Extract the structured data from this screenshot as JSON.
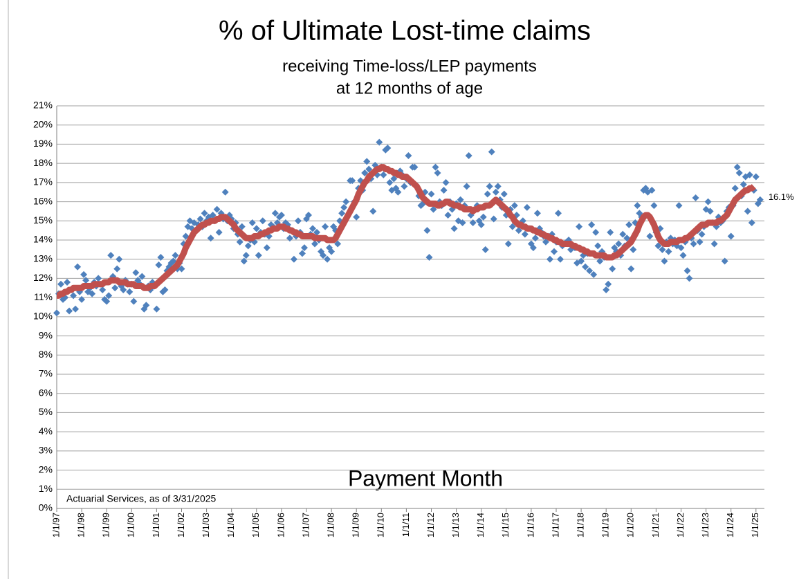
{
  "chart_data": {
    "type": "scatter",
    "title": "% of Ultimate Lost-time claims",
    "subtitle": [
      "receiving Time-loss/LEP payments",
      "at 12 months of age"
    ],
    "x_label": "Payment Month",
    "note": "Actuarial Services, as of 3/31/2025",
    "annotation": "16.1%",
    "grid": true,
    "ylim": [
      0,
      21
    ],
    "yticks": [
      {
        "value": 0,
        "label": "0%"
      },
      {
        "value": 1,
        "label": "1%"
      },
      {
        "value": 2,
        "label": "2%"
      },
      {
        "value": 3,
        "label": "3%"
      },
      {
        "value": 4,
        "label": "4%"
      },
      {
        "value": 5,
        "label": "5%"
      },
      {
        "value": 6,
        "label": "6%"
      },
      {
        "value": 7,
        "label": "7%"
      },
      {
        "value": 8,
        "label": "8%"
      },
      {
        "value": 9,
        "label": "9%"
      },
      {
        "value": 10,
        "label": "10%"
      },
      {
        "value": 11,
        "label": "11%"
      },
      {
        "value": 12,
        "label": "12%"
      },
      {
        "value": 13,
        "label": "13%"
      },
      {
        "value": 14,
        "label": "14%"
      },
      {
        "value": 15,
        "label": "15%"
      },
      {
        "value": 16,
        "label": "16%"
      },
      {
        "value": 17,
        "label": "17%"
      },
      {
        "value": 18,
        "label": "18%"
      },
      {
        "value": 19,
        "label": "19%"
      },
      {
        "value": 20,
        "label": "20%"
      },
      {
        "value": 21,
        "label": "21%"
      }
    ],
    "categories": [
      "1/1/97",
      null,
      null,
      null,
      null,
      null,
      null,
      null,
      null,
      null,
      null,
      null,
      "1/1/98",
      null,
      null,
      null,
      null,
      null,
      null,
      null,
      null,
      null,
      null,
      null,
      "1/1/99",
      null,
      null,
      null,
      null,
      null,
      null,
      null,
      null,
      null,
      null,
      null,
      "1/1/00",
      null,
      null,
      null,
      null,
      null,
      null,
      null,
      null,
      null,
      null,
      null,
      "1/1/01",
      null,
      null,
      null,
      null,
      null,
      null,
      null,
      null,
      null,
      null,
      null,
      "1/1/02",
      null,
      null,
      null,
      null,
      null,
      null,
      null,
      null,
      null,
      null,
      null,
      "1/1/03",
      null,
      null,
      null,
      null,
      null,
      null,
      null,
      null,
      null,
      null,
      null,
      "1/1/04",
      null,
      null,
      null,
      null,
      null,
      null,
      null,
      null,
      null,
      null,
      null,
      "1/1/05",
      null,
      null,
      null,
      null,
      null,
      null,
      null,
      null,
      null,
      null,
      null,
      "1/1/06",
      null,
      null,
      null,
      null,
      null,
      null,
      null,
      null,
      null,
      null,
      null,
      "1/1/07",
      null,
      null,
      null,
      null,
      null,
      null,
      null,
      null,
      null,
      null,
      null,
      "1/1/08",
      null,
      null,
      null,
      null,
      null,
      null,
      null,
      null,
      null,
      null,
      null,
      "1/1/09",
      null,
      null,
      null,
      null,
      null,
      null,
      null,
      null,
      null,
      null,
      null,
      "1/1/10",
      null,
      null,
      null,
      null,
      null,
      null,
      null,
      null,
      null,
      null,
      null,
      "1/1/11",
      null,
      null,
      null,
      null,
      null,
      null,
      null,
      null,
      null,
      null,
      null,
      "1/1/12",
      null,
      null,
      null,
      null,
      null,
      null,
      null,
      null,
      null,
      null,
      null,
      "1/1/13",
      null,
      null,
      null,
      null,
      null,
      null,
      null,
      null,
      null,
      null,
      null,
      "1/1/14",
      null,
      null,
      null,
      null,
      null,
      null,
      null,
      null,
      null,
      null,
      null,
      "1/1/15",
      null,
      null,
      null,
      null,
      null,
      null,
      null,
      null,
      null,
      null,
      null,
      "1/1/16",
      null,
      null,
      null,
      null,
      null,
      null,
      null,
      null,
      null,
      null,
      null,
      "1/1/17",
      null,
      null,
      null,
      null,
      null,
      null,
      null,
      null,
      null,
      null,
      null,
      "1/1/18",
      null,
      null,
      null,
      null,
      null,
      null,
      null,
      null,
      null,
      null,
      null,
      "1/1/19",
      null,
      null,
      null,
      null,
      null,
      null,
      null,
      null,
      null,
      null,
      null,
      "1/1/20",
      null,
      null,
      null,
      null,
      null,
      null,
      null,
      null,
      null,
      null,
      null,
      "1/1/21",
      null,
      null,
      null,
      null,
      null,
      null,
      null,
      null,
      null,
      null,
      null,
      "1/1/22",
      null,
      null,
      null,
      null,
      null,
      null,
      null,
      null,
      null,
      null,
      null,
      "1/1/23",
      null,
      null,
      null,
      null,
      null,
      null,
      null,
      null,
      null,
      null,
      null,
      "1/1/24",
      null,
      null,
      null,
      null,
      null,
      null,
      null,
      null,
      null,
      null,
      null,
      "1/1/25",
      null,
      null
    ],
    "series": [
      {
        "color": "#4f81bd",
        "marker": "diamond",
        "values": [
          10.2,
          11.2,
          11.7,
          10.9,
          11.0,
          11.8,
          10.3,
          11.4,
          11.1,
          10.4,
          12.6,
          11.3,
          10.9,
          12.2,
          11.9,
          11.3,
          11.5,
          11.2,
          11.8,
          11.6,
          12.0,
          11.7,
          11.4,
          10.9,
          10.8,
          11.1,
          13.2,
          12.1,
          11.5,
          12.5,
          13.0,
          11.6,
          11.4,
          11.9,
          11.7,
          11.3,
          11.7,
          10.8,
          12.3,
          11.9,
          11.7,
          12.1,
          10.4,
          10.6,
          11.6,
          11.4,
          11.8,
          11.6,
          10.4,
          12.7,
          13.1,
          11.3,
          11.4,
          12.4,
          12.6,
          12.8,
          12.9,
          13.2,
          12.5,
          12.8,
          12.5,
          13.8,
          14.2,
          14.7,
          15.0,
          14.6,
          14.9,
          14.5,
          14.8,
          15.1,
          14.7,
          15.4,
          15.0,
          15.2,
          14.1,
          15.3,
          15.0,
          15.6,
          14.4,
          15.4,
          15.1,
          16.5,
          15.0,
          15.3,
          15.1,
          14.6,
          14.9,
          14.3,
          13.9,
          14.7,
          12.9,
          13.2,
          13.7,
          14.0,
          14.9,
          13.9,
          14.6,
          13.2,
          14.4,
          15.0,
          14.3,
          13.6,
          14.2,
          14.8,
          14.7,
          15.4,
          14.9,
          15.2,
          15.3,
          14.6,
          14.9,
          14.8,
          14.1,
          14.5,
          13.0,
          14.2,
          15.0,
          14.4,
          13.3,
          13.6,
          15.1,
          15.3,
          14.3,
          14.6,
          13.8,
          14.4,
          14.0,
          13.4,
          13.2,
          14.7,
          13.0,
          13.6,
          13.4,
          14.7,
          14.5,
          13.8,
          15.0,
          15.4,
          15.7,
          16.0,
          15.3,
          17.1,
          17.1,
          16.0,
          15.2,
          16.7,
          17.1,
          16.6,
          17.5,
          18.1,
          17.7,
          17.2,
          15.5,
          17.9,
          17.4,
          19.1,
          17.8,
          17.4,
          18.7,
          18.8,
          17.0,
          16.6,
          17.2,
          16.7,
          16.5,
          17.6,
          17.4,
          16.8,
          17.2,
          18.4,
          17.0,
          17.8,
          17.8,
          16.8,
          16.3,
          15.8,
          15.9,
          16.5,
          14.5,
          13.1,
          16.4,
          15.6,
          17.8,
          17.5,
          16.0,
          15.8,
          16.6,
          17.0,
          15.3,
          16.0,
          15.6,
          14.6,
          15.9,
          15.0,
          16.1,
          14.9,
          15.8,
          16.8,
          18.4,
          15.3,
          14.9,
          15.6,
          15.8,
          15.0,
          14.8,
          15.2,
          13.5,
          16.4,
          16.8,
          18.6,
          15.1,
          16.5,
          16.8,
          16.1,
          15.7,
          16.4,
          15.3,
          13.8,
          15.6,
          14.7,
          15.8,
          15.3,
          14.5,
          14.8,
          15.0,
          14.3,
          15.7,
          14.6,
          13.8,
          13.6,
          14.1,
          15.4,
          14.6,
          14.4,
          14.2,
          13.9,
          14.2,
          13.0,
          14.3,
          13.4,
          13.9,
          15.4,
          13.0,
          13.7,
          13.8,
          13.9,
          14.0,
          13.5,
          13.7,
          13.6,
          12.8,
          14.7,
          12.9,
          13.2,
          12.6,
          13.3,
          12.4,
          14.8,
          12.2,
          14.4,
          13.7,
          12.9,
          13.4,
          13.1,
          11.4,
          11.7,
          14.4,
          12.5,
          13.6,
          13.4,
          13.8,
          13.2,
          14.3,
          13.7,
          14.1,
          14.8,
          12.5,
          13.5,
          14.9,
          15.8,
          15.4,
          15.2,
          16.6,
          16.7,
          16.5,
          14.2,
          16.6,
          15.8,
          14.4,
          13.7,
          14.6,
          13.5,
          12.9,
          13.9,
          13.4,
          14.1,
          13.8,
          14.0,
          13.7,
          15.8,
          13.6,
          13.2,
          13.9,
          12.4,
          12.0,
          14.1,
          13.8,
          16.2,
          14.5,
          13.9,
          14.3,
          14.7,
          15.6,
          16.0,
          15.5,
          14.9,
          13.8,
          14.7,
          15.2,
          14.9,
          15.0,
          12.9,
          15.5,
          15.7,
          14.2,
          15.8,
          16.7,
          17.8,
          17.5,
          16.3,
          16.9,
          17.3,
          15.5,
          17.4,
          14.9,
          16.6,
          17.3,
          15.9,
          16.1
        ]
      },
      {
        "color": "#c0504d",
        "marker": "line",
        "values": [
          11.1,
          11.1,
          11.2,
          11.2,
          11.3,
          11.3,
          11.4,
          11.4,
          11.5,
          11.5,
          11.5,
          11.5,
          11.5,
          11.6,
          11.6,
          11.6,
          11.6,
          11.6,
          11.7,
          11.7,
          11.7,
          11.7,
          11.7,
          11.8,
          11.8,
          11.8,
          11.9,
          11.9,
          11.9,
          11.9,
          11.8,
          11.8,
          11.8,
          11.8,
          11.7,
          11.7,
          11.7,
          11.7,
          11.6,
          11.6,
          11.6,
          11.6,
          11.5,
          11.5,
          11.5,
          11.6,
          11.6,
          11.6,
          11.7,
          11.8,
          11.9,
          12.0,
          12.1,
          12.2,
          12.3,
          12.4,
          12.5,
          12.6,
          12.7,
          12.9,
          13.1,
          13.3,
          13.6,
          13.8,
          14.0,
          14.2,
          14.4,
          14.5,
          14.6,
          14.7,
          14.8,
          14.8,
          14.9,
          14.9,
          15.0,
          15.0,
          15.0,
          15.1,
          15.1,
          15.2,
          15.2,
          15.2,
          15.1,
          15.0,
          14.9,
          14.8,
          14.6,
          14.5,
          14.4,
          14.3,
          14.2,
          14.1,
          14.1,
          14.1,
          14.1,
          14.2,
          14.2,
          14.2,
          14.3,
          14.3,
          14.4,
          14.4,
          14.5,
          14.5,
          14.6,
          14.6,
          14.6,
          14.7,
          14.7,
          14.7,
          14.6,
          14.6,
          14.5,
          14.5,
          14.4,
          14.4,
          14.3,
          14.3,
          14.2,
          14.2,
          14.2,
          14.2,
          14.2,
          14.2,
          14.1,
          14.1,
          14.1,
          14.1,
          14.1,
          14.1,
          14.0,
          14.0,
          14.0,
          14.0,
          14.1,
          14.3,
          14.5,
          14.7,
          14.9,
          15.1,
          15.3,
          15.5,
          15.7,
          15.9,
          16.1,
          16.4,
          16.6,
          16.8,
          17.0,
          17.1,
          17.3,
          17.4,
          17.5,
          17.6,
          17.7,
          17.7,
          17.8,
          17.8,
          17.7,
          17.7,
          17.6,
          17.6,
          17.5,
          17.5,
          17.4,
          17.4,
          17.3,
          17.3,
          17.3,
          17.2,
          17.1,
          17.0,
          16.9,
          16.8,
          16.6,
          16.4,
          16.2,
          16.1,
          16.0,
          15.9,
          15.9,
          15.9,
          15.9,
          15.8,
          15.8,
          15.9,
          15.9,
          16.0,
          16.0,
          15.9,
          15.9,
          15.8,
          15.8,
          15.8,
          15.7,
          15.7,
          15.6,
          15.6,
          15.6,
          15.6,
          15.5,
          15.6,
          15.6,
          15.7,
          15.7,
          15.7,
          15.8,
          15.8,
          15.8,
          15.9,
          16.0,
          16.1,
          16.0,
          15.9,
          15.8,
          15.7,
          15.6,
          15.5,
          15.3,
          15.2,
          15.0,
          14.9,
          14.8,
          14.8,
          14.7,
          14.7,
          14.6,
          14.6,
          14.6,
          14.5,
          14.5,
          14.4,
          14.4,
          14.3,
          14.3,
          14.2,
          14.2,
          14.1,
          14.1,
          14.0,
          14.0,
          13.9,
          13.9,
          13.8,
          13.8,
          13.8,
          13.8,
          13.8,
          13.7,
          13.7,
          13.6,
          13.6,
          13.5,
          13.5,
          13.4,
          13.4,
          13.3,
          13.3,
          13.3,
          13.2,
          13.2,
          13.2,
          13.2,
          13.2,
          13.1,
          13.1,
          13.1,
          13.1,
          13.2,
          13.2,
          13.3,
          13.4,
          13.5,
          13.6,
          13.7,
          13.8,
          13.9,
          14.1,
          14.3,
          14.5,
          14.8,
          15.0,
          15.2,
          15.3,
          15.3,
          15.2,
          15.0,
          14.8,
          14.5,
          14.2,
          14.0,
          13.9,
          13.8,
          13.8,
          13.8,
          13.9,
          13.9,
          13.9,
          13.9,
          14.0,
          14.0,
          14.0,
          14.1,
          14.1,
          14.2,
          14.3,
          14.4,
          14.5,
          14.6,
          14.7,
          14.8,
          14.8,
          14.8,
          14.9,
          14.9,
          14.9,
          14.9,
          14.9,
          15.0,
          15.0,
          15.1,
          15.2,
          15.3,
          15.5,
          15.7,
          15.9,
          16.1,
          16.2,
          16.3,
          16.4,
          16.5,
          16.6,
          16.6,
          16.7,
          16.7,
          16.8,
          null,
          null,
          null
        ]
      }
    ]
  }
}
